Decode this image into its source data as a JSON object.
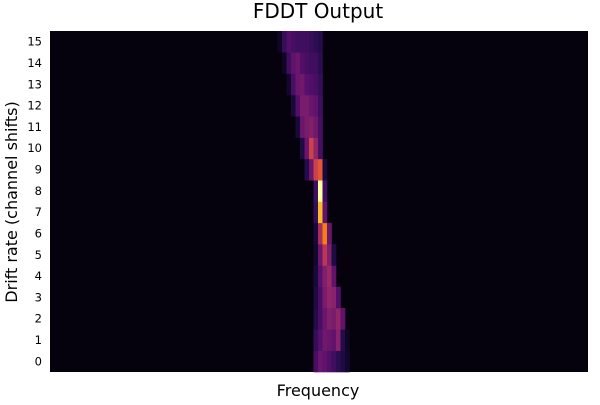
{
  "chart_data": {
    "type": "heatmap",
    "title": "FDDT Output",
    "xlabel": "Frequency",
    "ylabel": "Drift rate (channel shifts)",
    "y_ticks": [
      "0",
      "1",
      "2",
      "3",
      "4",
      "5",
      "6",
      "7",
      "8",
      "9",
      "10",
      "11",
      "12",
      "13",
      "14",
      "15"
    ],
    "x_ticks": [],
    "colormap": "inferno",
    "value_range": [
      0,
      1
    ],
    "grid": false,
    "legend": "none",
    "background_value": 0.02,
    "signal_rows": [
      {
        "drift": 0,
        "cells": [
          [
            -1,
            0.22
          ],
          [
            0,
            0.3
          ],
          [
            1,
            0.28
          ],
          [
            2,
            0.24
          ],
          [
            3,
            0.2
          ],
          [
            4,
            0.16
          ],
          [
            5,
            0.12
          ],
          [
            6,
            0.08
          ]
        ]
      },
      {
        "drift": 1,
        "cells": [
          [
            -1,
            0.18
          ],
          [
            0,
            0.25
          ],
          [
            1,
            0.32
          ],
          [
            2,
            0.3
          ],
          [
            3,
            0.28
          ],
          [
            4,
            0.38
          ],
          [
            5,
            0.14
          ],
          [
            6,
            0.06
          ]
        ]
      },
      {
        "drift": 2,
        "cells": [
          [
            -1,
            0.14
          ],
          [
            0,
            0.22
          ],
          [
            1,
            0.3
          ],
          [
            2,
            0.36
          ],
          [
            3,
            0.34
          ],
          [
            4,
            0.4
          ],
          [
            5,
            0.28
          ]
        ]
      },
      {
        "drift": 3,
        "cells": [
          [
            -1,
            0.12
          ],
          [
            0,
            0.22
          ],
          [
            1,
            0.34
          ],
          [
            2,
            0.4
          ],
          [
            3,
            0.38
          ],
          [
            4,
            0.24
          ]
        ]
      },
      {
        "drift": 4,
        "cells": [
          [
            -1,
            0.1
          ],
          [
            0,
            0.26
          ],
          [
            1,
            0.36
          ],
          [
            2,
            0.42
          ],
          [
            3,
            0.28
          ]
        ]
      },
      {
        "drift": 5,
        "cells": [
          [
            -1,
            0.08
          ],
          [
            0,
            0.3
          ],
          [
            1,
            0.5
          ],
          [
            2,
            0.36
          ],
          [
            3,
            0.12
          ]
        ]
      },
      {
        "drift": 6,
        "cells": [
          [
            -1,
            0.1
          ],
          [
            0,
            0.45
          ],
          [
            1,
            0.72
          ],
          [
            2,
            0.3
          ]
        ]
      },
      {
        "drift": 7,
        "cells": [
          [
            -1,
            0.18
          ],
          [
            0,
            0.85
          ],
          [
            1,
            0.28
          ]
        ]
      },
      {
        "drift": 8,
        "cells": [
          [
            -1,
            0.2
          ],
          [
            0,
            1.0
          ],
          [
            1,
            0.2
          ]
        ]
      },
      {
        "drift": 9,
        "cells": [
          [
            -3,
            0.14
          ],
          [
            -2,
            0.3
          ],
          [
            -1,
            0.55
          ],
          [
            0,
            0.62
          ],
          [
            1,
            0.1
          ]
        ]
      },
      {
        "drift": 10,
        "cells": [
          [
            -4,
            0.12
          ],
          [
            -3,
            0.3
          ],
          [
            -2,
            0.55
          ],
          [
            -1,
            0.4
          ],
          [
            0,
            0.22
          ]
        ]
      },
      {
        "drift": 11,
        "cells": [
          [
            -5,
            0.1
          ],
          [
            -4,
            0.3
          ],
          [
            -3,
            0.34
          ],
          [
            -2,
            0.36
          ],
          [
            -1,
            0.32
          ],
          [
            0,
            0.22
          ]
        ]
      },
      {
        "drift": 12,
        "cells": [
          [
            -6,
            0.1
          ],
          [
            -5,
            0.24
          ],
          [
            -4,
            0.34
          ],
          [
            -3,
            0.34
          ],
          [
            -2,
            0.3
          ],
          [
            -1,
            0.28
          ],
          [
            0,
            0.2
          ]
        ]
      },
      {
        "drift": 13,
        "cells": [
          [
            -7,
            0.08
          ],
          [
            -6,
            0.22
          ],
          [
            -5,
            0.3
          ],
          [
            -4,
            0.32
          ],
          [
            -3,
            0.26
          ],
          [
            -2,
            0.24
          ],
          [
            -1,
            0.22
          ],
          [
            0,
            0.18
          ]
        ]
      },
      {
        "drift": 14,
        "cells": [
          [
            -8,
            0.06
          ],
          [
            -7,
            0.2
          ],
          [
            -6,
            0.28
          ],
          [
            -5,
            0.3
          ],
          [
            -4,
            0.24
          ],
          [
            -3,
            0.22
          ],
          [
            -2,
            0.2
          ],
          [
            -1,
            0.2
          ],
          [
            0,
            0.16
          ]
        ]
      },
      {
        "drift": 15,
        "cells": [
          [
            -9,
            0.06
          ],
          [
            -8,
            0.18
          ],
          [
            -7,
            0.24
          ],
          [
            -6,
            0.22
          ],
          [
            -5,
            0.2
          ],
          [
            -4,
            0.2
          ],
          [
            -3,
            0.2
          ],
          [
            -2,
            0.18
          ],
          [
            -1,
            0.16
          ],
          [
            0,
            0.14
          ]
        ]
      }
    ]
  }
}
